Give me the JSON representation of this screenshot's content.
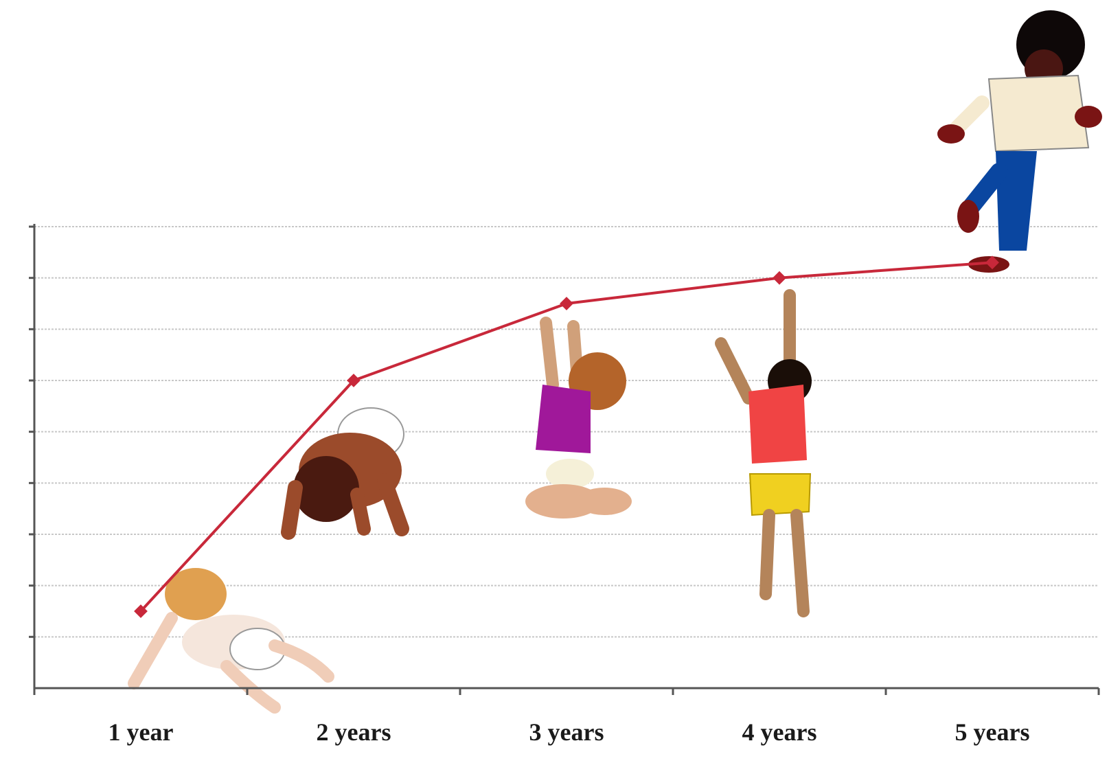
{
  "chart_data": {
    "type": "line",
    "categories": [
      "1 year",
      "2 years",
      "3 years",
      "4 years",
      "5 years"
    ],
    "series": [
      {
        "values": [
          1.5,
          6.0,
          7.5,
          8.0,
          8.3
        ]
      }
    ],
    "ylim": [
      0,
      9
    ],
    "grid": true,
    "title": "",
    "xlabel": "",
    "ylabel": "",
    "colors": {
      "line": "#c8283a",
      "grid": "#c8c8c8",
      "axis": "#555555"
    },
    "illustrations": [
      "crawling-baby",
      "hands-and-knees-child",
      "kneeling-child",
      "standing-reaching-child",
      "running-child"
    ]
  }
}
